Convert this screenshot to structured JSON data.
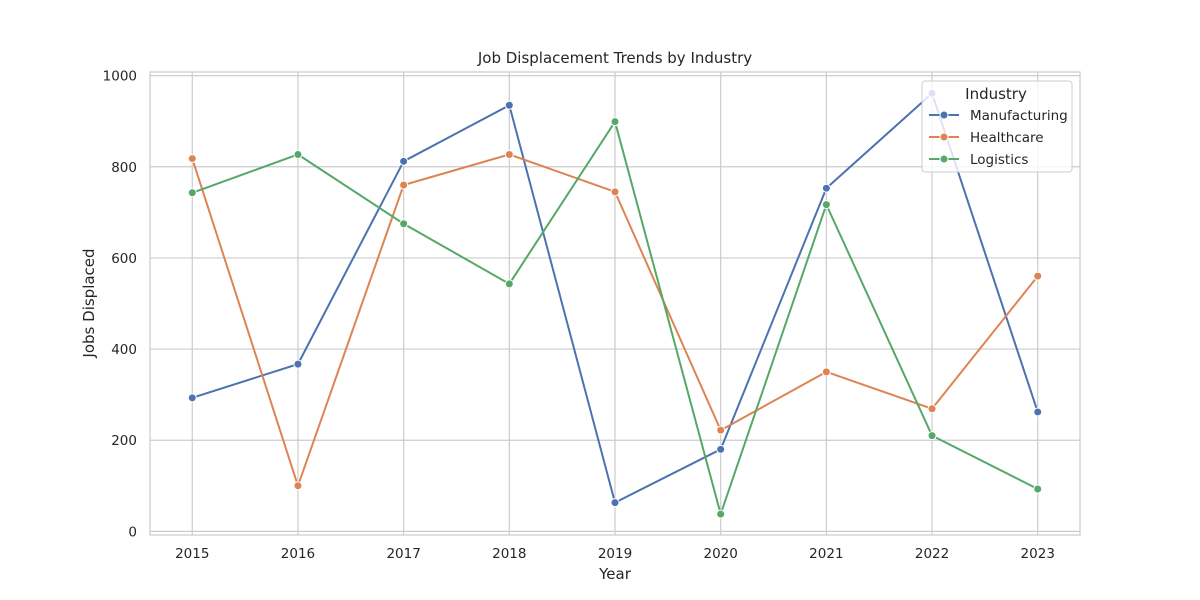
{
  "chart_data": {
    "type": "line",
    "title": "Job Displacement Trends by Industry",
    "xlabel": "Year",
    "ylabel": "Jobs Displaced",
    "x": [
      2015,
      2016,
      2017,
      2018,
      2019,
      2020,
      2021,
      2022,
      2023
    ],
    "x_ticks": [
      "2015",
      "2016",
      "2017",
      "2018",
      "2019",
      "2020",
      "2021",
      "2022",
      "2023"
    ],
    "y_ticks": [
      0,
      200,
      400,
      600,
      800,
      1000
    ],
    "ylim": [
      -8,
      1008
    ],
    "grid": true,
    "legend": {
      "title": "Industry",
      "placement": "top-right"
    },
    "series": [
      {
        "name": "Manufacturing",
        "color": "#4c72b0",
        "values": [
          293,
          367,
          812,
          935,
          63,
          180,
          753,
          961,
          262
        ]
      },
      {
        "name": "Healthcare",
        "color": "#dd8452",
        "values": [
          818,
          100,
          760,
          827,
          745,
          222,
          350,
          269,
          560
        ]
      },
      {
        "name": "Logistics",
        "color": "#55a868",
        "values": [
          743,
          827,
          675,
          543,
          899,
          38,
          717,
          210,
          93
        ]
      }
    ]
  }
}
